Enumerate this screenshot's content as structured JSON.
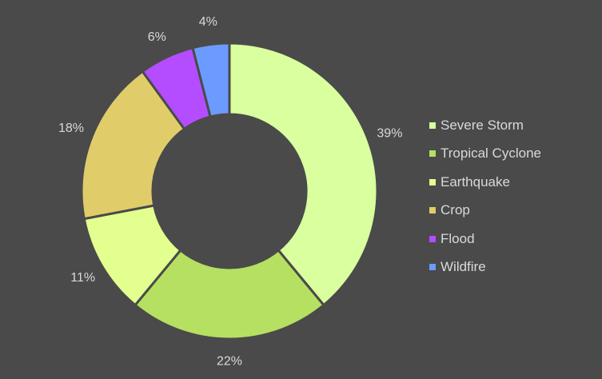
{
  "chart_data": {
    "type": "pie",
    "variant": "donut",
    "categories": [
      "Severe Storm",
      "Tropical Cyclone",
      "Earthquake",
      "Crop",
      "Flood",
      "Wildfire"
    ],
    "values": [
      39,
      22,
      11,
      18,
      6,
      4
    ],
    "labels": [
      "39%",
      "22%",
      "11%",
      "18%",
      "6%",
      "4%"
    ],
    "colors": [
      "#d9ff9e",
      "#b5e061",
      "#e3ff8f",
      "#e0cd6a",
      "#b44dff",
      "#6b9bff"
    ],
    "legend_position": "right",
    "title": ""
  }
}
